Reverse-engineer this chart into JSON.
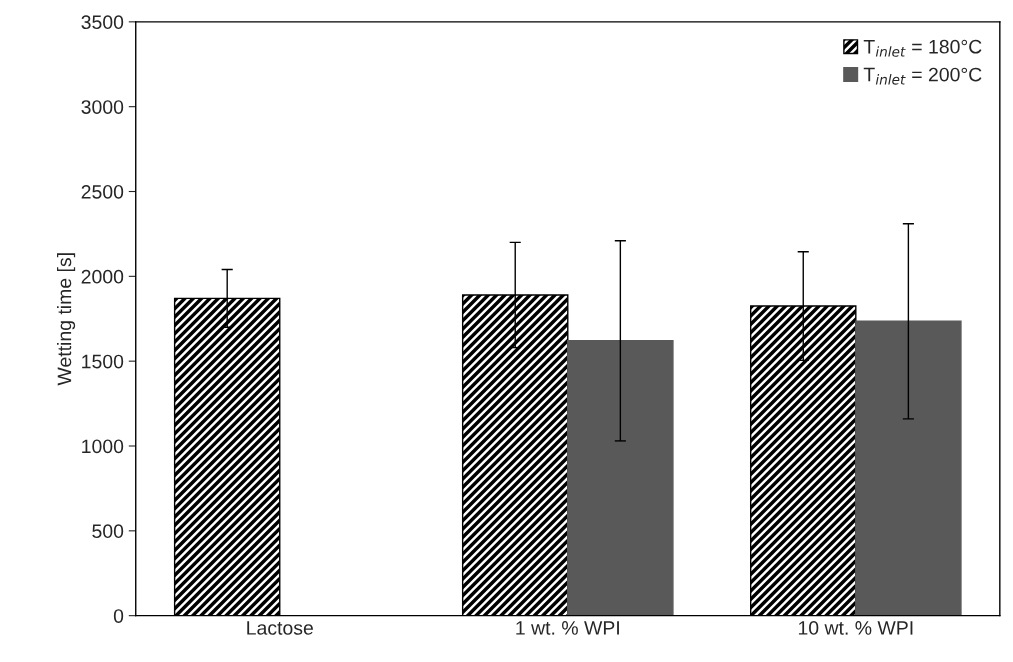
{
  "chart_data": {
    "type": "bar",
    "ylabel": "Wetting time [s]",
    "categories": [
      "Lactose",
      "1 wt. % WPI",
      "10 wt. % WPI"
    ],
    "series": [
      {
        "name": "T$_{inlet}$ = 180°C",
        "color": "#000000",
        "values": [
          1870,
          1890,
          1825
        ],
        "errors": [
          170,
          310,
          320
        ]
      },
      {
        "name": "T$_{inlet}$ = 200°C",
        "color": "#595959",
        "values": [
          0,
          1620,
          1735
        ],
        "errors": [
          null,
          590,
          575
        ]
      }
    ],
    "ylim": [
      0,
      3500
    ],
    "yticks": [
      0,
      500,
      1000,
      1500,
      2000,
      2500,
      3000,
      3500
    ],
    "grid": false,
    "legend": "top right"
  }
}
